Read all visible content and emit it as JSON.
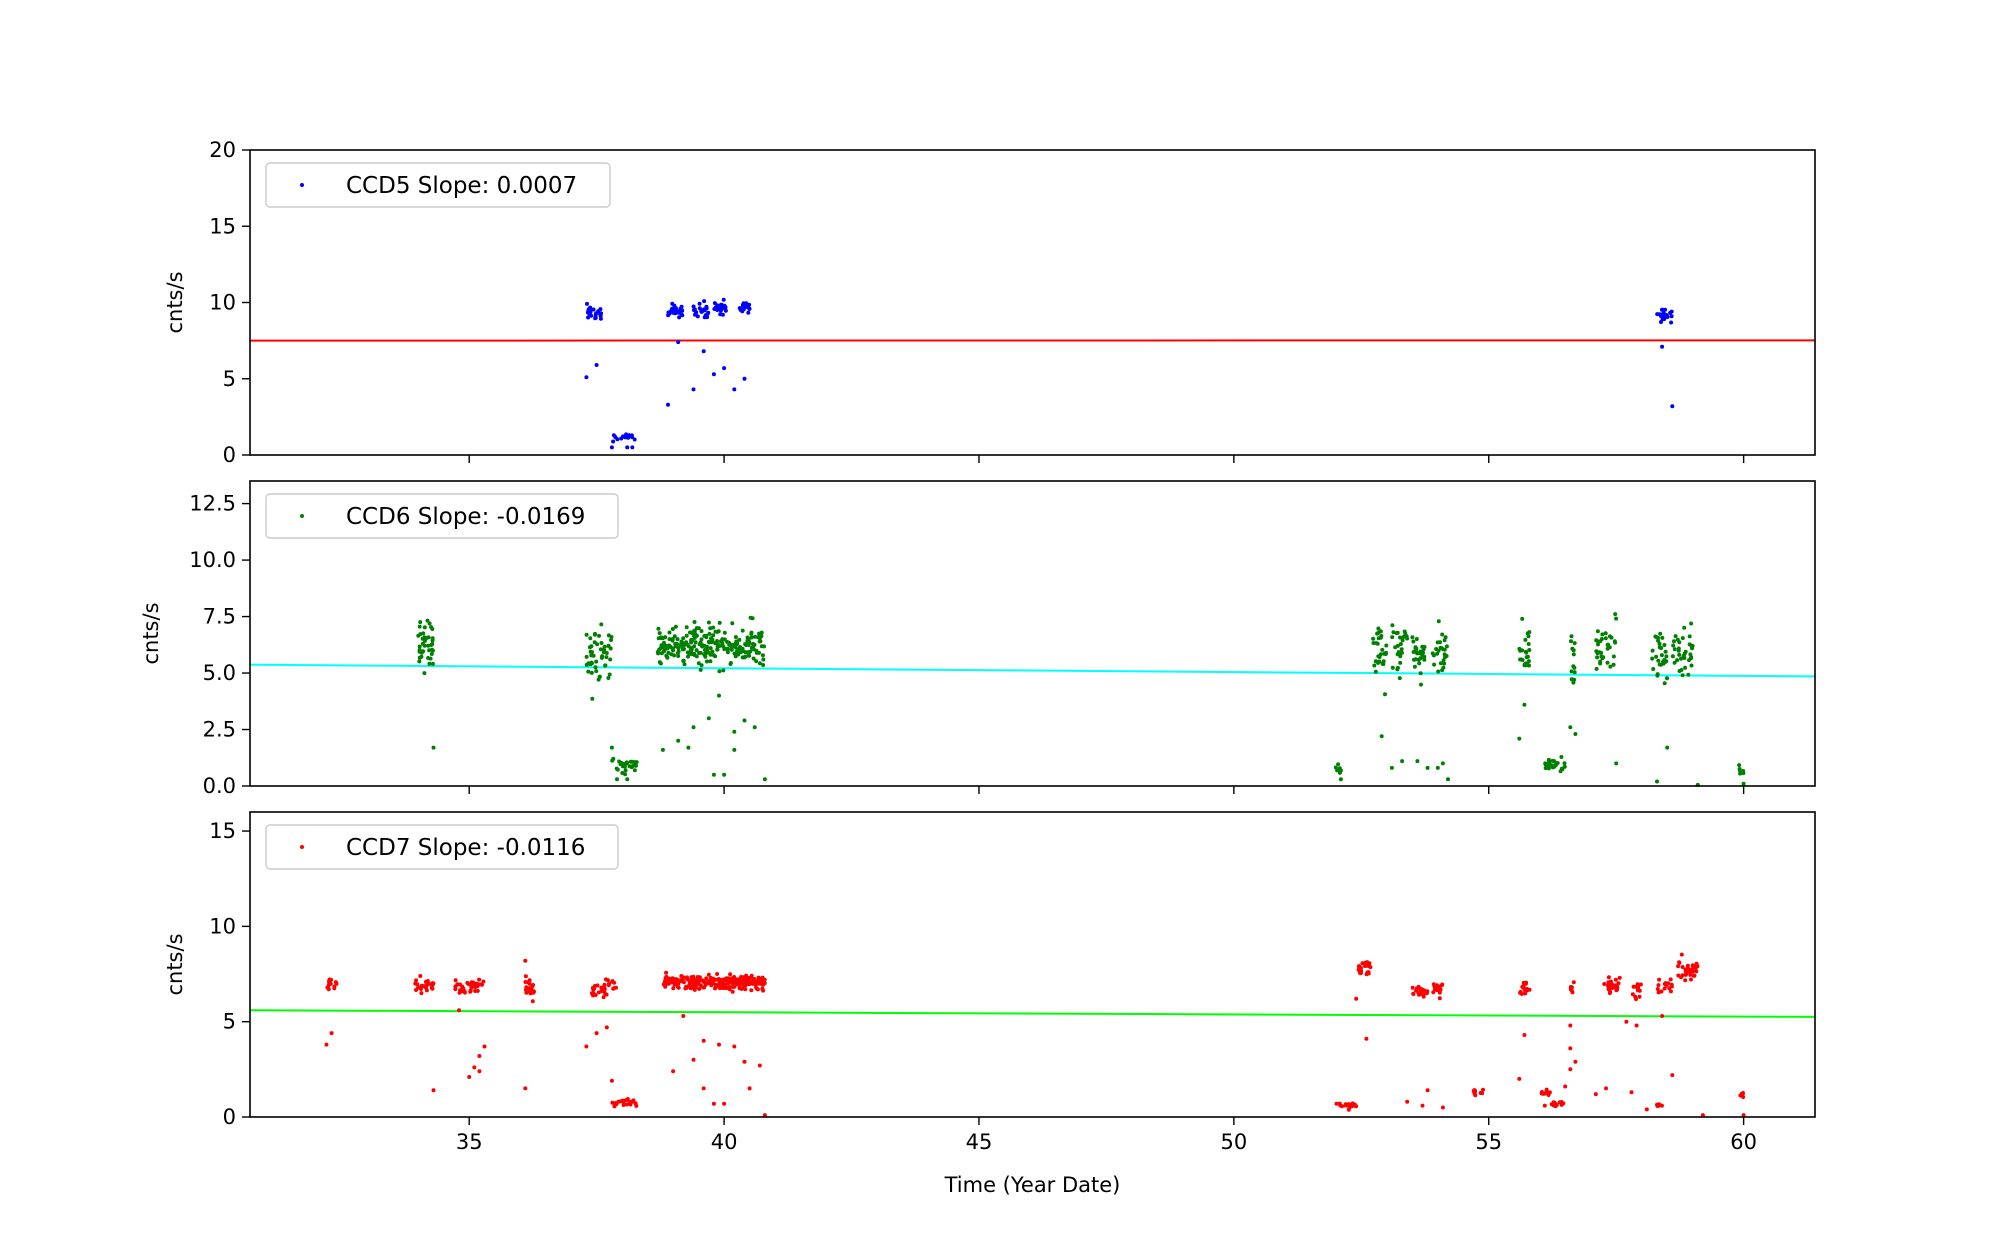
{
  "chart_data": {
    "type": "scatter",
    "xlabel": "Time (Year Date)",
    "xlim": [
      30.7,
      61.4
    ],
    "xticks": [
      35,
      40,
      45,
      50,
      55,
      60
    ],
    "panels": [
      {
        "id": "ccd5",
        "legend": "CCD5 Slope: 0.0007",
        "ylabel": "cnts/s",
        "ylim": [
          0,
          20
        ],
        "yticks": [
          0,
          5,
          10,
          15,
          20
        ],
        "ytick_labels": [
          "0",
          "5",
          "10",
          "15",
          "20"
        ],
        "point_color": "#0000ff",
        "fit_color": "#ff0000",
        "fit": {
          "x0": 30.7,
          "y0": 7.5,
          "x1": 61.4,
          "y1": 7.52
        },
        "clusters": [
          {
            "x0": 37.3,
            "x1": 37.6,
            "ymean": 9.2,
            "ysd": 0.25,
            "n": 22
          },
          {
            "x0": 37.8,
            "x1": 38.3,
            "ymean": 1.2,
            "ysd": 0.12,
            "n": 16
          },
          {
            "x0": 38.9,
            "x1": 39.2,
            "ymean": 9.4,
            "ysd": 0.25,
            "n": 26
          },
          {
            "x0": 39.4,
            "x1": 39.7,
            "ymean": 9.5,
            "ysd": 0.25,
            "n": 24
          },
          {
            "x0": 39.8,
            "x1": 40.1,
            "ymean": 9.6,
            "ysd": 0.25,
            "n": 24
          },
          {
            "x0": 40.3,
            "x1": 40.5,
            "ymean": 9.7,
            "ysd": 0.2,
            "n": 20
          },
          {
            "x0": 58.3,
            "x1": 58.6,
            "ymean": 9.2,
            "ysd": 0.25,
            "n": 20
          }
        ],
        "points": [
          [
            37.3,
            5.1
          ],
          [
            37.5,
            5.9
          ],
          [
            37.8,
            0.5
          ],
          [
            38.1,
            0.5
          ],
          [
            38.2,
            0.5
          ],
          [
            38.9,
            3.3
          ],
          [
            39.1,
            7.4
          ],
          [
            39.4,
            4.3
          ],
          [
            39.6,
            6.8
          ],
          [
            39.8,
            5.3
          ],
          [
            40.0,
            5.7
          ],
          [
            40.2,
            4.3
          ],
          [
            40.4,
            5.0
          ],
          [
            58.4,
            7.1
          ],
          [
            58.6,
            3.2
          ]
        ]
      },
      {
        "id": "ccd6",
        "legend": "CCD6 Slope: -0.0169",
        "ylabel": "cnts/s",
        "ylim": [
          0,
          13.5
        ],
        "yticks": [
          0,
          2.5,
          5,
          7.5,
          10,
          12.5
        ],
        "ytick_labels": [
          "0.0",
          "2.5",
          "5.0",
          "7.5",
          "10.0",
          "12.5"
        ],
        "point_color": "#008000",
        "fit_color": "#00ffff",
        "fit": {
          "x0": 30.7,
          "y0": 5.37,
          "x1": 61.4,
          "y1": 4.85
        },
        "clusters": [
          {
            "x0": 34.0,
            "x1": 34.3,
            "ymean": 6.2,
            "ysd": 0.6,
            "n": 40
          },
          {
            "x0": 37.3,
            "x1": 37.8,
            "ymean": 5.8,
            "ysd": 0.7,
            "n": 50
          },
          {
            "x0": 37.8,
            "x1": 38.3,
            "ymean": 0.95,
            "ysd": 0.15,
            "n": 30
          },
          {
            "x0": 38.7,
            "x1": 40.8,
            "ymean": 6.2,
            "ysd": 0.45,
            "n": 240
          },
          {
            "x0": 52.7,
            "x1": 53.0,
            "ymean": 5.9,
            "ysd": 0.55,
            "n": 28
          },
          {
            "x0": 53.1,
            "x1": 53.4,
            "ymean": 6.0,
            "ysd": 0.55,
            "n": 26
          },
          {
            "x0": 53.5,
            "x1": 53.8,
            "ymean": 5.9,
            "ysd": 0.55,
            "n": 26
          },
          {
            "x0": 53.9,
            "x1": 54.2,
            "ymean": 5.9,
            "ysd": 0.55,
            "n": 26
          },
          {
            "x0": 55.6,
            "x1": 55.8,
            "ymean": 6.0,
            "ysd": 0.55,
            "n": 24
          },
          {
            "x0": 56.1,
            "x1": 56.5,
            "ymean": 0.95,
            "ysd": 0.2,
            "n": 24
          },
          {
            "x0": 56.6,
            "x1": 56.7,
            "ymean": 5.5,
            "ysd": 0.6,
            "n": 14
          },
          {
            "x0": 57.1,
            "x1": 57.5,
            "ymean": 6.2,
            "ysd": 0.55,
            "n": 34
          },
          {
            "x0": 58.2,
            "x1": 58.5,
            "ymean": 5.8,
            "ysd": 0.6,
            "n": 30
          },
          {
            "x0": 58.6,
            "x1": 59.0,
            "ymean": 5.9,
            "ysd": 0.5,
            "n": 36
          },
          {
            "x0": 59.9,
            "x1": 60.0,
            "ymean": 0.65,
            "ysd": 0.1,
            "n": 6
          },
          {
            "x0": 52.0,
            "x1": 52.1,
            "ymean": 0.8,
            "ysd": 0.15,
            "n": 6
          }
        ],
        "points": [
          [
            34.3,
            1.7
          ],
          [
            37.8,
            1.7
          ],
          [
            37.9,
            0.3
          ],
          [
            38.1,
            0.3
          ],
          [
            38.8,
            1.6
          ],
          [
            39.1,
            2.0
          ],
          [
            39.3,
            1.7
          ],
          [
            39.4,
            2.6
          ],
          [
            39.7,
            3.0
          ],
          [
            39.9,
            4.0
          ],
          [
            39.8,
            0.5
          ],
          [
            40.0,
            0.5
          ],
          [
            40.2,
            1.6
          ],
          [
            40.2,
            2.4
          ],
          [
            40.4,
            2.9
          ],
          [
            40.6,
            2.6
          ],
          [
            40.8,
            0.3
          ],
          [
            52.1,
            0.3
          ],
          [
            52.9,
            2.2
          ],
          [
            53.1,
            0.8
          ],
          [
            53.3,
            1.1
          ],
          [
            53.6,
            1.1
          ],
          [
            53.8,
            0.8
          ],
          [
            54.0,
            0.8
          ],
          [
            54.1,
            1.0
          ],
          [
            54.2,
            0.3
          ],
          [
            55.6,
            2.1
          ],
          [
            55.7,
            3.6
          ],
          [
            56.6,
            2.6
          ],
          [
            56.7,
            2.3
          ],
          [
            57.5,
            1.0
          ],
          [
            58.3,
            0.2
          ],
          [
            58.5,
            1.7
          ],
          [
            59.1,
            0.05
          ],
          [
            60.0,
            0.1
          ]
        ]
      },
      {
        "id": "ccd7",
        "legend": "CCD7 Slope: -0.0116",
        "ylabel": "cnts/s",
        "ylim": [
          0,
          16
        ],
        "yticks": [
          0,
          5,
          10,
          15
        ],
        "ytick_labels": [
          "0",
          "5",
          "10",
          "15"
        ],
        "point_color": "#ff0000",
        "fit_color": "#00ff00",
        "fit": {
          "x0": 30.7,
          "y0": 5.6,
          "x1": 61.4,
          "y1": 5.25
        },
        "clusters": [
          {
            "x0": 32.2,
            "x1": 32.4,
            "ymean": 7.0,
            "ysd": 0.2,
            "n": 14
          },
          {
            "x0": 33.9,
            "x1": 34.3,
            "ymean": 6.9,
            "ysd": 0.2,
            "n": 28
          },
          {
            "x0": 34.7,
            "x1": 35.3,
            "ymean": 6.8,
            "ysd": 0.2,
            "n": 40
          },
          {
            "x0": 36.1,
            "x1": 36.3,
            "ymean": 6.8,
            "ysd": 0.35,
            "n": 18
          },
          {
            "x0": 37.4,
            "x1": 37.7,
            "ymean": 6.6,
            "ysd": 0.2,
            "n": 22
          },
          {
            "x0": 37.7,
            "x1": 37.9,
            "ymean": 6.9,
            "ysd": 0.2,
            "n": 10
          },
          {
            "x0": 37.8,
            "x1": 38.3,
            "ymean": 0.7,
            "ysd": 0.1,
            "n": 22
          },
          {
            "x0": 38.8,
            "x1": 40.8,
            "ymean": 7.05,
            "ysd": 0.18,
            "n": 230
          },
          {
            "x0": 52.0,
            "x1": 52.4,
            "ymean": 0.6,
            "ysd": 0.05,
            "n": 22
          },
          {
            "x0": 52.4,
            "x1": 52.7,
            "ymean": 7.8,
            "ysd": 0.25,
            "n": 22
          },
          {
            "x0": 53.5,
            "x1": 53.8,
            "ymean": 6.6,
            "ysd": 0.15,
            "n": 22
          },
          {
            "x0": 53.9,
            "x1": 54.1,
            "ymean": 6.7,
            "ysd": 0.15,
            "n": 18
          },
          {
            "x0": 54.7,
            "x1": 54.9,
            "ymean": 1.3,
            "ysd": 0.08,
            "n": 10
          },
          {
            "x0": 55.6,
            "x1": 55.8,
            "ymean": 6.7,
            "ysd": 0.15,
            "n": 18
          },
          {
            "x0": 56.0,
            "x1": 56.2,
            "ymean": 1.3,
            "ysd": 0.08,
            "n": 10
          },
          {
            "x0": 56.2,
            "x1": 56.5,
            "ymean": 0.65,
            "ysd": 0.06,
            "n": 16
          },
          {
            "x0": 56.6,
            "x1": 56.7,
            "ymean": 6.8,
            "ysd": 0.15,
            "n": 8
          },
          {
            "x0": 57.2,
            "x1": 57.6,
            "ymean": 6.9,
            "ysd": 0.15,
            "n": 28
          },
          {
            "x0": 57.8,
            "x1": 58.0,
            "ymean": 6.6,
            "ysd": 0.2,
            "n": 12
          },
          {
            "x0": 58.3,
            "x1": 58.6,
            "ymean": 6.9,
            "ysd": 0.2,
            "n": 16
          },
          {
            "x0": 58.7,
            "x1": 59.1,
            "ymean": 7.7,
            "ysd": 0.25,
            "n": 34
          },
          {
            "x0": 58.3,
            "x1": 58.4,
            "ymean": 0.6,
            "ysd": 0.05,
            "n": 6
          },
          {
            "x0": 59.9,
            "x1": 60.0,
            "ymean": 1.1,
            "ysd": 0.05,
            "n": 6
          }
        ],
        "points": [
          [
            32.2,
            3.8
          ],
          [
            32.3,
            4.4
          ],
          [
            34.3,
            1.4
          ],
          [
            34.8,
            5.6
          ],
          [
            35.0,
            2.1
          ],
          [
            35.1,
            2.6
          ],
          [
            35.2,
            2.4
          ],
          [
            35.2,
            3.2
          ],
          [
            35.3,
            3.7
          ],
          [
            36.1,
            8.2
          ],
          [
            36.1,
            1.5
          ],
          [
            37.3,
            3.7
          ],
          [
            37.5,
            4.4
          ],
          [
            37.7,
            4.7
          ],
          [
            37.8,
            1.9
          ],
          [
            39.0,
            2.4
          ],
          [
            39.2,
            5.3
          ],
          [
            39.4,
            3.0
          ],
          [
            39.6,
            4.0
          ],
          [
            39.6,
            1.5
          ],
          [
            39.8,
            0.7
          ],
          [
            39.9,
            3.8
          ],
          [
            40.0,
            0.7
          ],
          [
            40.2,
            3.7
          ],
          [
            40.4,
            2.9
          ],
          [
            40.5,
            1.5
          ],
          [
            40.7,
            2.7
          ],
          [
            40.8,
            0.1
          ],
          [
            52.4,
            6.2
          ],
          [
            52.6,
            4.1
          ],
          [
            53.4,
            0.8
          ],
          [
            53.7,
            0.6
          ],
          [
            53.8,
            1.4
          ],
          [
            54.1,
            0.5
          ],
          [
            55.6,
            2.0
          ],
          [
            55.7,
            4.3
          ],
          [
            56.1,
            0.6
          ],
          [
            56.5,
            1.6
          ],
          [
            56.6,
            2.5
          ],
          [
            56.6,
            3.6
          ],
          [
            56.6,
            4.8
          ],
          [
            56.7,
            2.9
          ],
          [
            57.1,
            1.2
          ],
          [
            57.3,
            1.5
          ],
          [
            57.7,
            5.0
          ],
          [
            57.8,
            1.3
          ],
          [
            57.9,
            4.8
          ],
          [
            58.1,
            0.4
          ],
          [
            58.4,
            5.3
          ],
          [
            58.6,
            2.2
          ],
          [
            59.2,
            0.1
          ],
          [
            60.0,
            0.1
          ]
        ]
      }
    ]
  }
}
